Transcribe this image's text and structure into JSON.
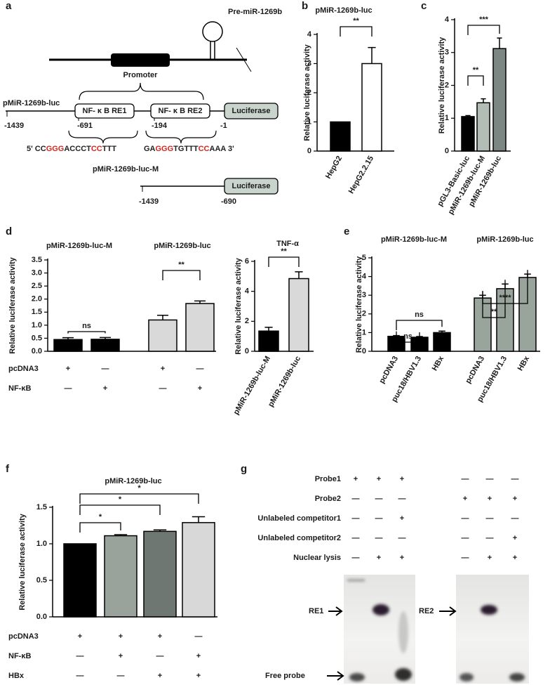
{
  "panel_a": {
    "label": "a",
    "pre_mir": "Pre-miR-1269b",
    "promoter": "Promoter",
    "construct": "pMiR-1269b-luc",
    "re1": "NF- κ B RE1",
    "re2": "NF- κ B RE2",
    "luciferase": "Luciferase",
    "positions": [
      "-1439",
      "-691",
      "-194",
      "-1"
    ],
    "seq1": [
      {
        "text": "5' CC",
        "color": "#222222"
      },
      {
        "text": "GGG",
        "color": "#d7261e"
      },
      {
        "text": "ACCCT",
        "color": "#222222"
      },
      {
        "text": "CC",
        "color": "#d7261e"
      },
      {
        "text": "TTT",
        "color": "#222222"
      }
    ],
    "seq2": [
      {
        "text": "GA",
        "color": "#222222"
      },
      {
        "text": "GGG",
        "color": "#d7261e"
      },
      {
        "text": "TGTTT",
        "color": "#222222"
      },
      {
        "text": "CC",
        "color": "#d7261e"
      },
      {
        "text": "AAA 3'",
        "color": "#222222"
      }
    ],
    "mutant": "pMiR-1269b-luc-M",
    "mutant_luciferase": "Luciferase",
    "mutant_positions": [
      "-1439",
      "-690"
    ]
  },
  "chart_data": [
    {
      "type": "bar",
      "label": "b",
      "title": "pMiR-1269b-luc",
      "ylabel": "Relative luciferase activity",
      "categories": [
        "HepG2",
        "HepG2.2.15"
      ],
      "values": [
        1,
        3.0
      ],
      "errors": [
        0,
        0.55
      ],
      "colors": [
        "#000000",
        "#ffffff"
      ],
      "ylim": [
        0,
        4
      ],
      "yticks": [
        0,
        1,
        2,
        3,
        4
      ],
      "significance": [
        "**"
      ]
    },
    {
      "type": "bar",
      "label": "c",
      "ylabel": "Relative luciferase activity",
      "categories": [
        "pGL3-Basic-luc",
        "pMiR-1269b-luc-M",
        "pMiR-1269b-luc"
      ],
      "values": [
        1.05,
        1.47,
        3.12
      ],
      "errors": [
        0.03,
        0.12,
        0.32
      ],
      "colors": [
        "#000000",
        "#b3bcb5",
        "#7c8783"
      ],
      "ylim": [
        0,
        4
      ],
      "yticks": [
        0,
        1,
        2,
        3,
        4
      ],
      "significance": [
        "**",
        "***"
      ]
    },
    {
      "type": "bar",
      "label": "d",
      "group_titles": [
        "pMiR-1269b-luc-M",
        "pMiR-1269b-luc"
      ],
      "ylabel": "Relative luciferase activity",
      "values": [
        0.45,
        0.46,
        1.2,
        1.83
      ],
      "errors": [
        0.07,
        0.07,
        0.18,
        0.1
      ],
      "colors": [
        "#000000",
        "#000000",
        "#d9d9d9",
        "#d9d9d9"
      ],
      "ylim": [
        0,
        3.5
      ],
      "yticks": [
        {
          "value": 0,
          "label": "0.0"
        },
        0.5,
        {
          "value": 1,
          "label": "1.0"
        },
        1.5,
        {
          "value": 2,
          "label": "2.0"
        },
        2.5,
        {
          "value": 3,
          "label": "3.0"
        },
        3.5
      ],
      "significance": [
        "ns",
        "**"
      ],
      "table": [
        {
          "name": "pcDNA3",
          "signs": [
            "+",
            "—",
            "+",
            "—"
          ]
        },
        {
          "name": "NF-κB",
          "signs": [
            "—",
            "+",
            "—",
            "+"
          ]
        }
      ]
    },
    {
      "type": "bar",
      "title": "TNF-α",
      "ylabel": "Relative luciferase activity",
      "categories": [
        "pMiR-1269b-luc-M",
        "pMiR-1269b-luc"
      ],
      "values": [
        1.35,
        4.85
      ],
      "errors": [
        0.25,
        0.45
      ],
      "colors": [
        "#000000",
        "#d9d9d9"
      ],
      "ylim": [
        0,
        6
      ],
      "yticks": [
        0,
        2,
        4,
        6
      ],
      "significance": [
        "**"
      ]
    },
    {
      "type": "bar",
      "label": "e",
      "group_titles": [
        "pMiR-1269b-luc-M",
        "pMiR-1269b-luc"
      ],
      "ylabel": "Relative luciferase activity",
      "categories": [
        "pcDNA3",
        "puc18/HBV1.3",
        "HBx",
        "pcDNA3",
        "puc18/HBV1.3",
        "HBx"
      ],
      "values": [
        0.8,
        0.75,
        1.0,
        2.85,
        3.35,
        3.95
      ],
      "errors": [
        0.04,
        0.04,
        0.08,
        0.15,
        0.25,
        0.18
      ],
      "colors": [
        "#000000",
        "#000000",
        "#000000",
        "#99a59c",
        "#99a59c",
        "#99a59c"
      ],
      "ylim": [
        0,
        5
      ],
      "yticks": [
        0,
        1,
        2,
        3,
        4,
        5
      ],
      "significance": [
        "ns",
        "ns",
        "**",
        "****"
      ]
    },
    {
      "type": "bar",
      "label": "f",
      "title": "pMiR-1269b-luc",
      "ylabel": "Relative luciferase activity",
      "values": [
        1.0,
        1.11,
        1.17,
        1.29
      ],
      "errors": [
        0,
        0.015,
        0.02,
        0.08
      ],
      "colors": [
        "#000000",
        "#9aa29c",
        "#6e7772",
        "#d8d8d8"
      ],
      "ylim": [
        0,
        1.5
      ],
      "yticks": [
        {
          "value": 0,
          "label": "0.0"
        },
        0.5,
        {
          "value": 1,
          "label": "1.0"
        },
        1.5
      ],
      "significance": [
        "*",
        "*",
        "*"
      ],
      "table": [
        {
          "name": "pcDNA3",
          "signs": [
            "+",
            "+",
            "+",
            "—"
          ]
        },
        {
          "name": "NF-κB",
          "signs": [
            "—",
            "+",
            "—",
            "+"
          ]
        },
        {
          "name": "HBx",
          "signs": [
            "—",
            "—",
            "+",
            "+"
          ]
        }
      ]
    }
  ],
  "panel_g": {
    "label": "g",
    "rows": [
      {
        "name": "Probe1",
        "signs": [
          "+",
          "+",
          "+",
          "—",
          "—",
          "—"
        ]
      },
      {
        "name": "Probe2",
        "signs": [
          "—",
          "—",
          "—",
          "+",
          "+",
          "+"
        ]
      },
      {
        "name": "Unlabeled competitor1",
        "signs": [
          "—",
          "—",
          "+",
          "—",
          "—",
          "—"
        ]
      },
      {
        "name": "Unlabeled competitor2",
        "signs": [
          "—",
          "—",
          "—",
          "—",
          "—",
          "+"
        ]
      },
      {
        "name": "Nuclear lysis",
        "signs": [
          "—",
          "+",
          "+",
          "—",
          "+",
          "+"
        ]
      }
    ],
    "band_labels": [
      "RE1",
      "RE2"
    ],
    "free_probe": "Free probe"
  }
}
